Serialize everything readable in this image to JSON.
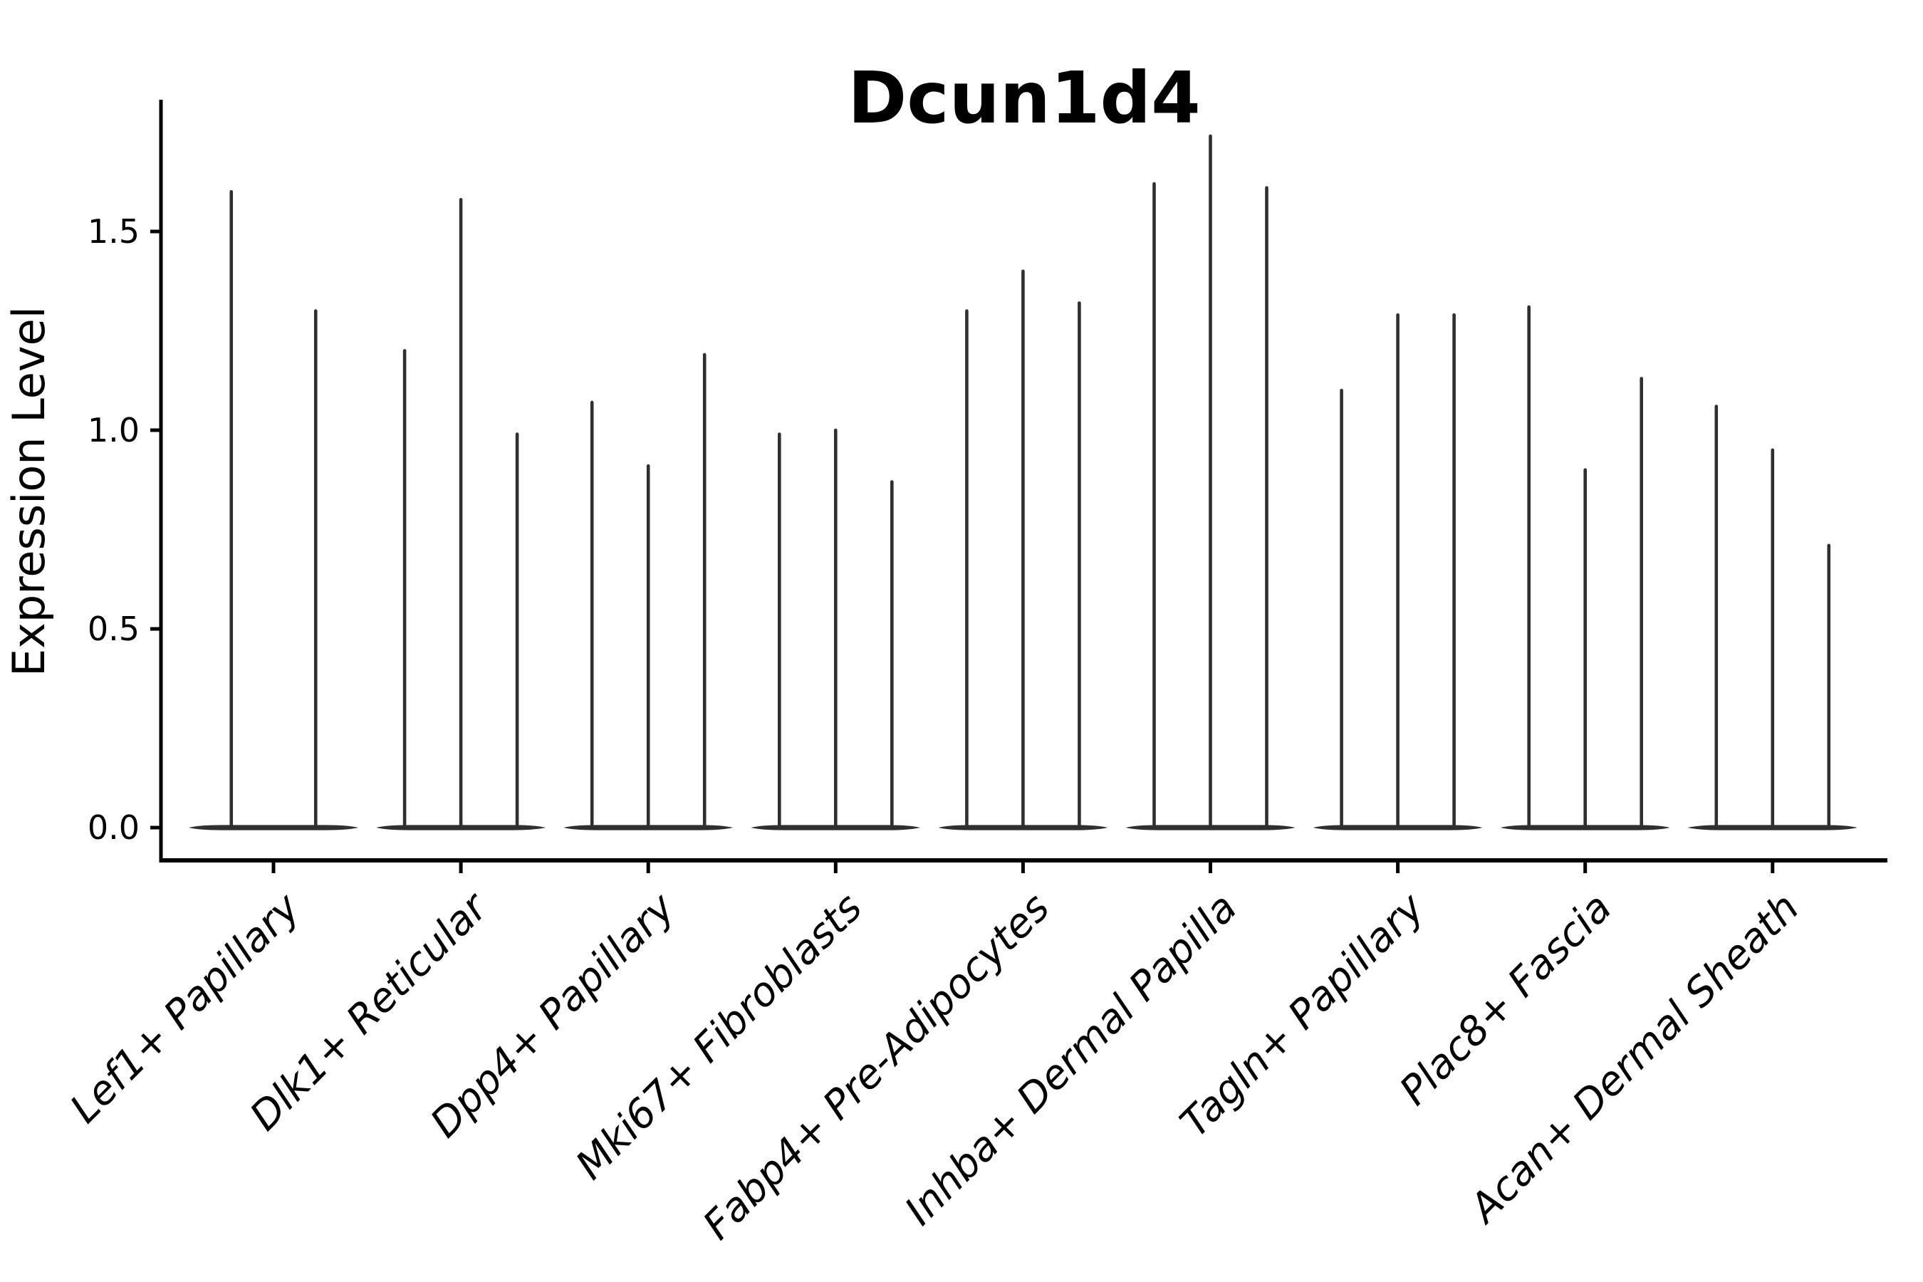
{
  "page": {
    "background": "#ffffff"
  },
  "chart_data": {
    "type": "violin",
    "title": "Dcun1d4",
    "ylabel": "Expression Level",
    "xlabel": "",
    "ylim": [
      0,
      1.83
    ],
    "yticks": [
      0,
      0.5,
      1.0,
      1.5
    ],
    "ytick_labels": [
      "0.0",
      "0.5",
      "1.0",
      "1.5"
    ],
    "grid": false,
    "legend": "none",
    "note": "Zero-inflated single-cell expression violins: each violin collapses to a flat density bar at 0 with a thin vertical spike reaching the maximum expression value.",
    "categories": [
      "Lef1+ Papillary",
      "Dlk1+ Reticular",
      "Dpp4+ Papillary",
      "Mki67+ Fibroblasts",
      "Fabp4+ Pre-Adipocytes",
      "Inhba+ Dermal Papilla",
      "Tagln+ Papillary",
      "Plac8+ Fascia",
      "Acan+ Dermal Sheath"
    ],
    "groups": [
      {
        "label": "Lef1+ Papillary",
        "violin_peaks": [
          1.6,
          1.3
        ]
      },
      {
        "label": "Dlk1+ Reticular",
        "violin_peaks": [
          1.2,
          1.58,
          0.99
        ]
      },
      {
        "label": "Dpp4+ Papillary",
        "violin_peaks": [
          1.07,
          0.91,
          1.19
        ]
      },
      {
        "label": "Mki67+ Fibroblasts",
        "violin_peaks": [
          0.99,
          1.0,
          0.87
        ]
      },
      {
        "label": "Fabp4+ Pre-Adipocytes",
        "violin_peaks": [
          1.3,
          1.4,
          1.32
        ]
      },
      {
        "label": "Inhba+ Dermal Papilla",
        "violin_peaks": [
          1.62,
          1.74,
          1.61
        ]
      },
      {
        "label": "Tagln+ Papillary",
        "violin_peaks": [
          1.1,
          1.29,
          1.29
        ]
      },
      {
        "label": "Plac8+ Fascia",
        "violin_peaks": [
          1.31,
          0.9,
          1.13
        ]
      },
      {
        "label": "Acan+ Dermal Sheath",
        "violin_peaks": [
          1.06,
          0.95,
          0.71
        ]
      }
    ],
    "colors": {
      "violin": "#2f2f2f",
      "axis": "#000000",
      "text": "#000000",
      "background": "#ffffff"
    }
  }
}
